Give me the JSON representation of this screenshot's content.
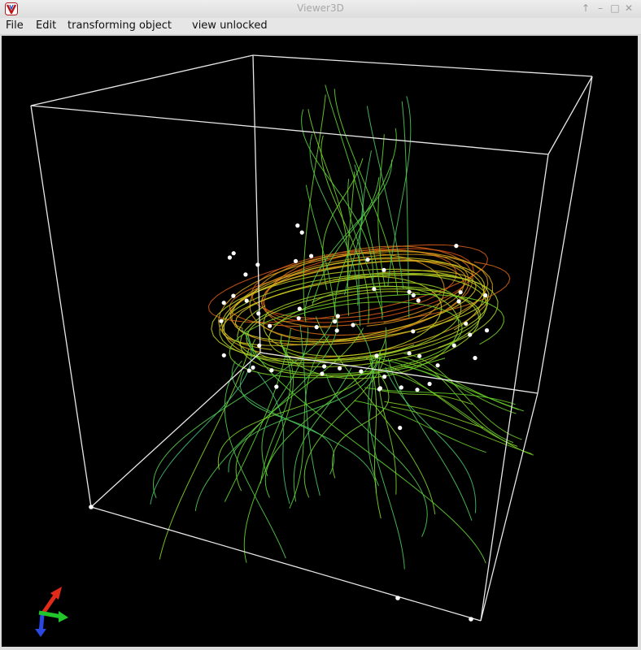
{
  "window": {
    "title": "Viewer3D"
  },
  "title_controls": {
    "pin": "↑",
    "minimize": "–",
    "maximize": "□",
    "close": "✕"
  },
  "menu": {
    "items": [
      "File",
      "Edit",
      "transforming object",
      "view unlocked"
    ]
  },
  "colors": {
    "viewport_background": "#000000",
    "bounding_box": "#e8e8e8",
    "seed_points": "#ffffff",
    "streamline_low": "#1e9fd0",
    "streamline_mid": "#5fd22a",
    "streamline_high": "#d8d020",
    "streamline_peak": "#d23a14",
    "axis_x": "#e02a1a",
    "axis_y": "#22c52a",
    "axis_z": "#2a48e0"
  },
  "icons": {
    "app": "viewer-app-icon",
    "pin": "pin-icon",
    "minimize": "minimize-icon",
    "maximize": "maximize-icon",
    "close": "close-icon",
    "axes": "axes-orientation-icon"
  }
}
